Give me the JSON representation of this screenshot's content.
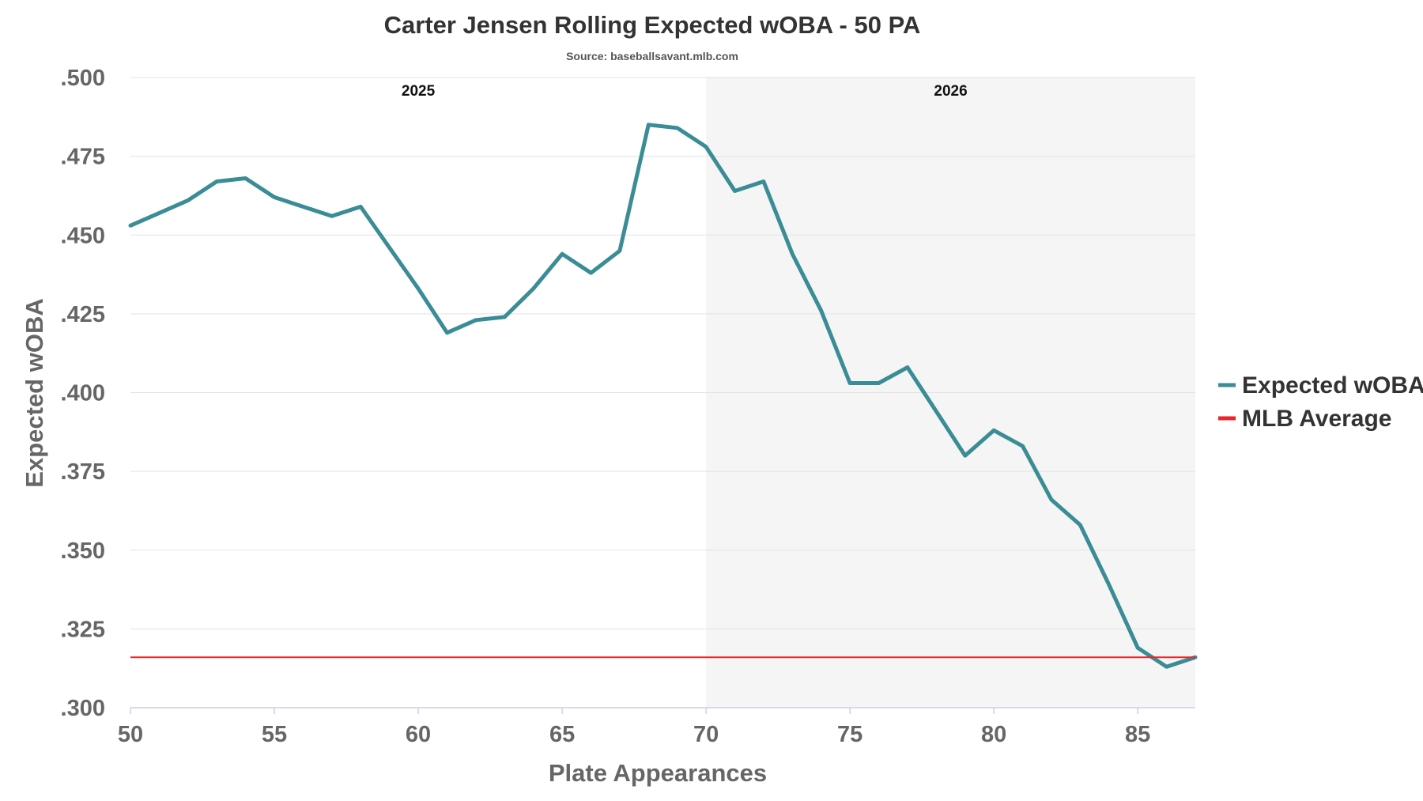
{
  "chart_data": {
    "type": "line",
    "title": "Carter Jensen Rolling Expected wOBA - 50 PA",
    "subtitle": "Source: baseballsavant.mlb.com",
    "xlabel": "Plate Appearances",
    "ylabel": "Expected wOBA",
    "xlim": [
      50,
      87
    ],
    "ylim": [
      0.3,
      0.5
    ],
    "x_ticks": [
      50,
      55,
      60,
      65,
      70,
      75,
      80,
      85
    ],
    "y_ticks": [
      ".300",
      ".325",
      ".350",
      ".375",
      ".400",
      ".425",
      ".450",
      ".475",
      ".500"
    ],
    "grid": true,
    "legend_position": "right",
    "regions": [
      {
        "label": "2025",
        "from": 50,
        "to": 70,
        "color": "#ffffff"
      },
      {
        "label": "2026",
        "from": 70,
        "to": 87,
        "color": "#f5f5f5"
      }
    ],
    "series": [
      {
        "name": "Expected wOBA",
        "color": "#3a8c95",
        "x": [
          50,
          51,
          52,
          53,
          54,
          55,
          56,
          57,
          58,
          59,
          60,
          61,
          62,
          63,
          64,
          65,
          66,
          67,
          68,
          69,
          70,
          71,
          72,
          73,
          74,
          75,
          76,
          77,
          78,
          79,
          80,
          81,
          82,
          83,
          84,
          85,
          86,
          87
        ],
        "values": [
          0.453,
          0.457,
          0.461,
          0.467,
          0.468,
          0.462,
          0.459,
          0.456,
          0.459,
          0.446,
          0.433,
          0.419,
          0.423,
          0.424,
          0.433,
          0.444,
          0.438,
          0.445,
          0.485,
          0.484,
          0.478,
          0.464,
          0.467,
          0.444,
          0.426,
          0.403,
          0.403,
          0.408,
          0.394,
          0.38,
          0.388,
          0.383,
          0.366,
          0.358,
          0.339,
          0.319,
          0.313,
          0.316
        ]
      },
      {
        "name": "MLB Average",
        "color": "#e8262a",
        "type": "hline",
        "value": 0.316
      }
    ]
  }
}
